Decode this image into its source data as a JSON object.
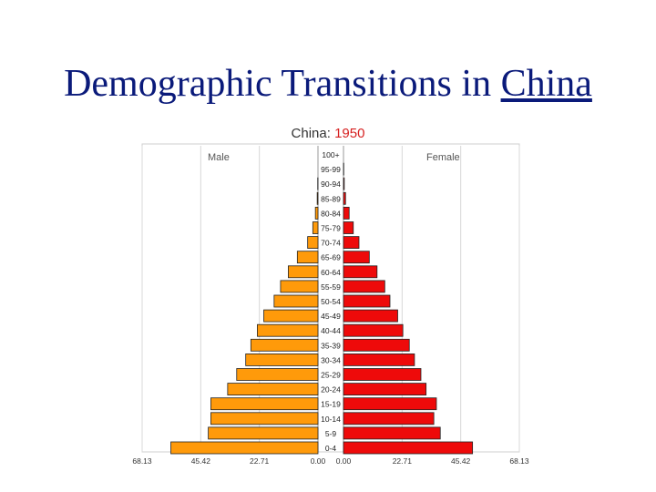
{
  "slide": {
    "title_prefix": "Demographic Transitions in ",
    "title_link": "China"
  },
  "chart_data": {
    "type": "bar",
    "title_country": "China:",
    "title_year": "1950",
    "left_label": "Male",
    "right_label": "Female",
    "categories": [
      "100+",
      "95-99",
      "90-94",
      "85-89",
      "80-84",
      "75-79",
      "70-74",
      "65-69",
      "60-64",
      "55-59",
      "50-54",
      "45-49",
      "40-44",
      "35-39",
      "30-34",
      "25-29",
      "20-24",
      "15-19",
      "10-14",
      "5-9",
      "0-4"
    ],
    "series": [
      {
        "name": "Male",
        "values": [
          0.0,
          0.0,
          0.1,
          0.3,
          1.0,
          2.0,
          4.0,
          8.0,
          11.5,
          14.5,
          17.0,
          21.0,
          23.5,
          26.0,
          28.0,
          31.5,
          35.0,
          41.5,
          41.5,
          42.5,
          57.0
        ]
      },
      {
        "name": "Female",
        "values": [
          0.0,
          0.1,
          0.3,
          0.8,
          2.2,
          3.8,
          6.0,
          10.0,
          13.0,
          16.0,
          18.0,
          21.0,
          23.0,
          25.5,
          27.5,
          30.0,
          32.0,
          36.0,
          35.0,
          37.5,
          50.0
        ]
      }
    ],
    "x_ticks": [
      "68.13",
      "45.42",
      "22.71",
      "0.00",
      "0.00",
      "22.71",
      "45.42",
      "68.13"
    ],
    "xlim": [
      0,
      68.13
    ],
    "colors": {
      "male": "#ff9a0a",
      "female": "#ee0a0a",
      "outline": "#222222"
    }
  }
}
